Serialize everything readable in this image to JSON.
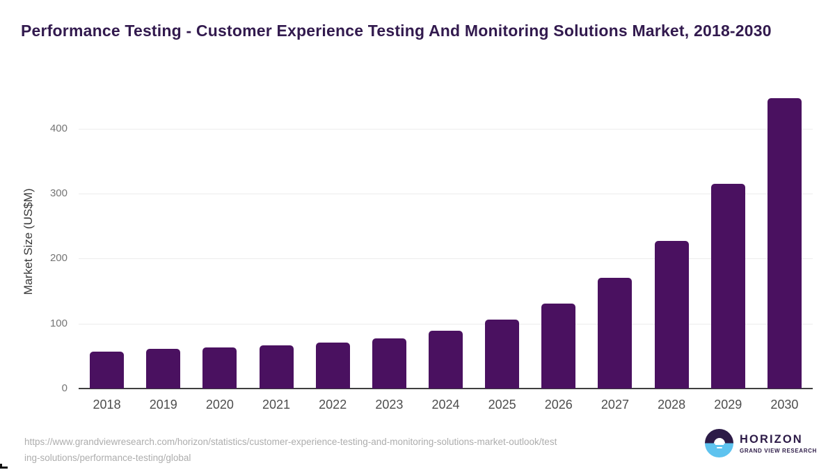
{
  "header": {
    "title": "Performance Testing - Customer Experience Testing And Monitoring Solutions Market, 2018-2030"
  },
  "chart_data": {
    "type": "bar",
    "title": "Performance Testing - Customer Experience Testing And Monitoring Solutions Market, 2018-2030",
    "categories": [
      "2018",
      "2019",
      "2020",
      "2021",
      "2022",
      "2023",
      "2024",
      "2025",
      "2026",
      "2027",
      "2028",
      "2029",
      "2030"
    ],
    "values": [
      57,
      61,
      63,
      66,
      71,
      77,
      89,
      106,
      131,
      170,
      227,
      315,
      447
    ],
    "xlabel": "",
    "ylabel": "Market Size (US$M)",
    "ylim": [
      0,
      450
    ],
    "yticks": [
      0,
      100,
      200,
      300,
      400
    ],
    "grid": "horizontal-only",
    "legend": "none",
    "bar_color": "#4a1160"
  },
  "footer": {
    "url_line1": "https://www.grandviewresearch.com/horizon/statistics/customer-experience-testing-and-monitoring-solutions-market-outlook/test",
    "url_line2": "ing-solutions/performance-testing/global",
    "full_url": "https://www.grandviewresearch.com/horizon/statistics/customer-experience-testing-and-monitoring-solutions-market-outlook/testing-solutions/performance-testing/global"
  },
  "logo": {
    "brand": "HORIZON",
    "subtitle": "GRAND VIEW RESEARCH"
  },
  "colors": {
    "bar": "#4a1160",
    "title_text": "#321a4e",
    "gridline": "#ececec",
    "axis_line": "#3f3f3f",
    "y_tick_text": "#757575",
    "x_tick_text": "#4d4d4d",
    "url_text": "#adadad",
    "logo_purple": "#2d1b47",
    "logo_blue": "#5ec3ef"
  }
}
